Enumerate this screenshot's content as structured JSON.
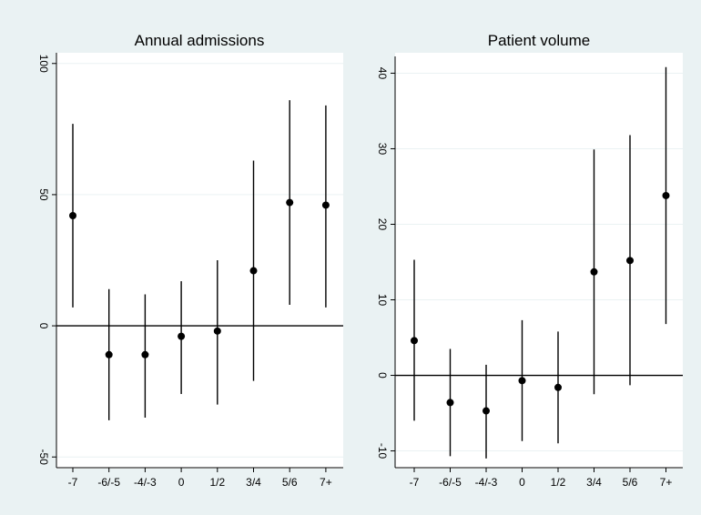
{
  "chart_data": [
    {
      "type": "scatter",
      "subtype": "point-estimate-with-confidence-intervals",
      "title": "Annual admissions",
      "xlabel": "",
      "ylabel": "",
      "categories": [
        "-7",
        "-6/-5",
        "-4/-3",
        "0",
        "1/2",
        "3/4",
        "5/6",
        "7+"
      ],
      "estimates": [
        42,
        -11,
        -11,
        -4,
        -2,
        21,
        47,
        46
      ],
      "ci_lower": [
        7,
        -36,
        -35,
        -26,
        -30,
        -21,
        8,
        7
      ],
      "ci_upper": [
        77,
        14,
        12,
        17,
        25,
        63,
        86,
        84
      ],
      "ylim": [
        -52,
        102
      ],
      "yticks": [
        -50,
        0,
        50,
        100
      ],
      "reference_line": 0,
      "grid": true
    },
    {
      "type": "scatter",
      "subtype": "point-estimate-with-confidence-intervals",
      "title": "Patient volume",
      "xlabel": "",
      "ylabel": "",
      "categories": [
        "-7",
        "-6/-5",
        "-4/-3",
        "0",
        "1/2",
        "3/4",
        "5/6",
        "7+"
      ],
      "estimates": [
        4.6,
        -3.6,
        -4.7,
        -0.7,
        -1.6,
        13.7,
        15.2,
        23.8
      ],
      "ci_lower": [
        -6.0,
        -10.7,
        -11.0,
        -8.7,
        -9.0,
        -2.5,
        -1.3,
        6.8
      ],
      "ci_upper": [
        15.3,
        3.5,
        1.4,
        7.3,
        5.8,
        29.9,
        31.8,
        40.8
      ],
      "ylim": [
        -11.5,
        41.5
      ],
      "yticks": [
        -10,
        0,
        10,
        20,
        30,
        40
      ],
      "reference_line": 0,
      "grid": true
    }
  ]
}
